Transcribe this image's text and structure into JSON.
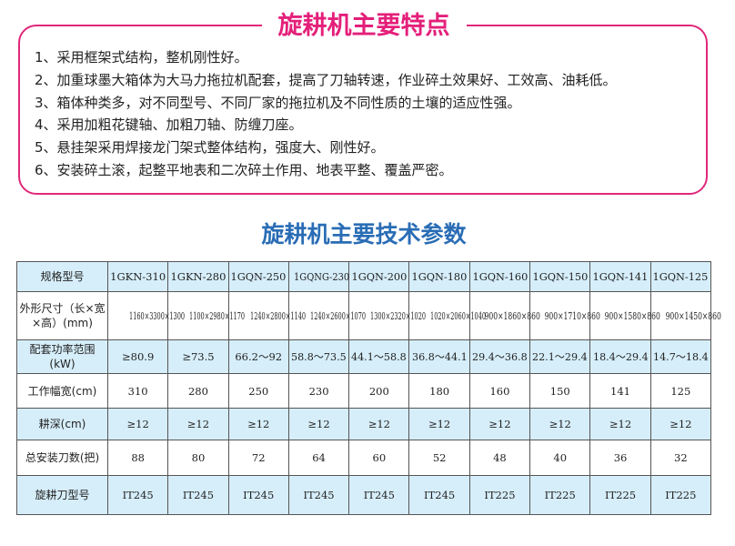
{
  "features": {
    "title": "旋耕机主要特点",
    "items": [
      "1、采用框架式结构，整机刚性好。",
      "2、加重球墨大箱体为大马力拖拉机配套，提高了刀轴转速，作业碎土效果好、工效高、油耗低。",
      "3、箱体种类多，对不同型号、不同厂家的拖拉机及不同性质的土壤的适应性强。",
      "4、采用加粗花键轴、加粗刀轴、防缠刀座。",
      "5、悬挂架采用焊接龙门架式整体结构，强度大、刚性好。",
      "6、安装碎土滚，起整平地表和二次碎土作用、地表平整、覆盖严密。"
    ]
  },
  "specs": {
    "title": "旋耕机主要技术参数",
    "rows": [
      {
        "label": "规格型号",
        "values": [
          "1GKN-310",
          "1GKN-280",
          "1GQN-250",
          "1GQNG-230",
          "1GQN-200",
          "1GQN-180",
          "1GQN-160",
          "1GQN-150",
          "1GQN-141",
          "1GQN-125"
        ]
      },
      {
        "label": "外形尺寸（长×宽×高）(mm)",
        "values": [
          "1160×3300×1300",
          "1100×2980×1170",
          "1240×2800×1140",
          "1240×2600×1070",
          "1300×2320×1020",
          "1020×2060×1040",
          "900×1860×860",
          "900×1710×860",
          "900×1580×860",
          "900×1450×860"
        ]
      },
      {
        "label": "配套功率范围(kW)",
        "values": [
          "≥80.9",
          "≥73.5",
          "66.2～92",
          "58.8～73.5",
          "44.1～58.8",
          "36.8～44.1",
          "29.4～36.8",
          "22.1～29.4",
          "18.4～29.4",
          "14.7～18.4"
        ]
      },
      {
        "label": "工作幅宽(cm)",
        "values": [
          "310",
          "280",
          "250",
          "230",
          "200",
          "180",
          "160",
          "150",
          "141",
          "125"
        ]
      },
      {
        "label": "耕深(cm)",
        "values": [
          "≥12",
          "≥12",
          "≥12",
          "≥12",
          "≥12",
          "≥12",
          "≥12",
          "≥12",
          "≥12",
          "≥12"
        ]
      },
      {
        "label": "总安装刀数(把)",
        "values": [
          "88",
          "80",
          "72",
          "64",
          "60",
          "52",
          "48",
          "40",
          "36",
          "32"
        ]
      },
      {
        "label": "旋耕刀型号",
        "values": [
          "IT245",
          "IT245",
          "IT245",
          "IT245",
          "IT245",
          "IT245",
          "IT225",
          "IT225",
          "IT225",
          "IT225"
        ]
      }
    ]
  },
  "colors": {
    "accent_pink": "#e4207a",
    "title_blue": "#2a6db5",
    "row_blue": "#d6eefa"
  }
}
